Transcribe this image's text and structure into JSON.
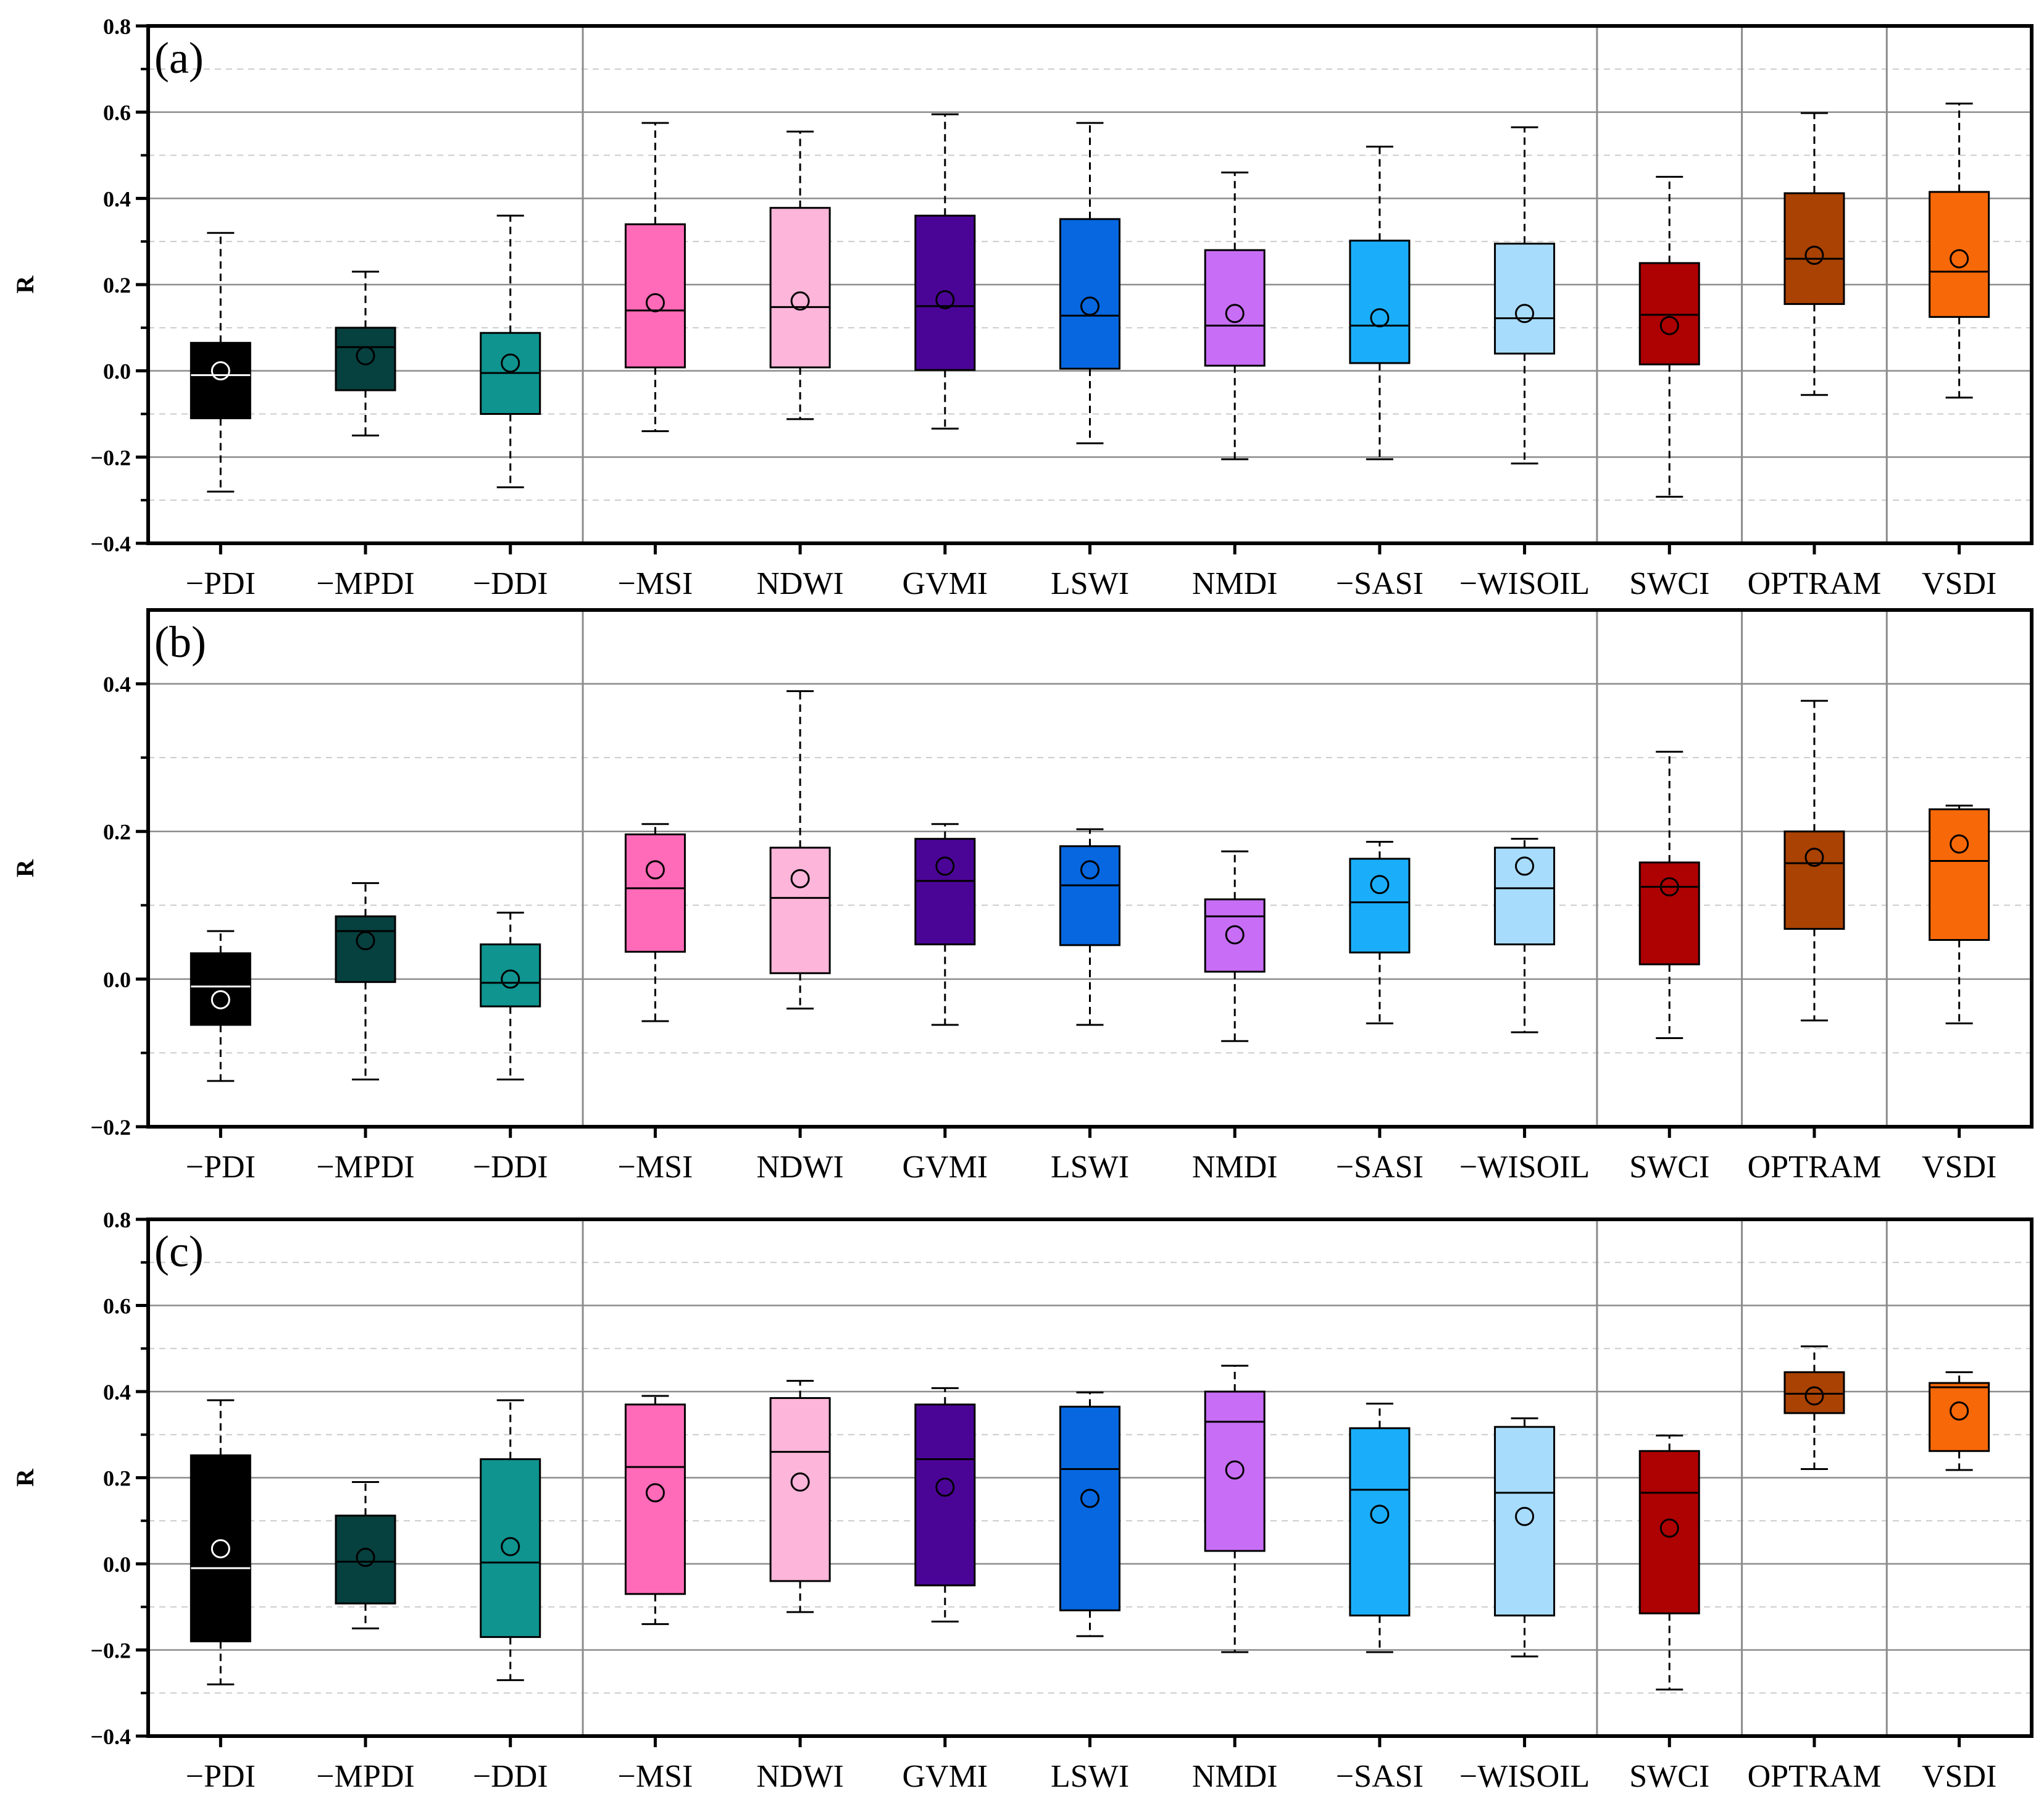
{
  "colors": {
    "-PDI": "#000000",
    "-MPDI": "#06403f",
    "-DDI": "#0f9490",
    "-MSI": "#ff6bb8",
    "NDWI": "#fdb5d9",
    "GVMI": "#4b0596",
    "LSWI": "#0667e0",
    "NMDI": "#c86ef6",
    "-SASI": "#1aaefa",
    "-WISOIL": "#a8dcfc",
    "SWCI": "#ae0101",
    "OPTRAM": "#a94202",
    "VSDI": "#f76808"
  },
  "chart_data": [
    {
      "type": "box",
      "panel_label": "(a)",
      "ylabel": "R",
      "ylim": [
        -0.4,
        0.8
      ],
      "yticks": [
        -0.4,
        -0.2,
        0.0,
        0.2,
        0.4,
        0.6,
        0.8
      ],
      "ytick_labels": [
        "−0.4",
        "−0.2",
        "0.0",
        "0.2",
        "0.4",
        "0.6",
        "0.8"
      ],
      "grid": true,
      "group_separators_after": [
        3,
        10,
        11,
        12
      ],
      "categories": [
        "−PDI",
        "−MPDI",
        "−DDI",
        "−MSI",
        "NDWI",
        "GVMI",
        "LSWI",
        "NMDI",
        "−SASI",
        "−WISOIL",
        "SWCI",
        "OPTRAM",
        "VSDI"
      ],
      "boxes": [
        {
          "min": -0.28,
          "q1": -0.11,
          "median": -0.01,
          "q3": 0.065,
          "max": 0.32,
          "mean": 0.0
        },
        {
          "min": -0.15,
          "q1": -0.045,
          "median": 0.055,
          "q3": 0.1,
          "max": 0.23,
          "mean": 0.035
        },
        {
          "min": -0.27,
          "q1": -0.1,
          "median": -0.005,
          "q3": 0.088,
          "max": 0.36,
          "mean": 0.018
        },
        {
          "min": -0.14,
          "q1": 0.008,
          "median": 0.14,
          "q3": 0.34,
          "max": 0.575,
          "mean": 0.158
        },
        {
          "min": -0.112,
          "q1": 0.008,
          "median": 0.148,
          "q3": 0.378,
          "max": 0.555,
          "mean": 0.162
        },
        {
          "min": -0.134,
          "q1": 0.002,
          "median": 0.15,
          "q3": 0.36,
          "max": 0.595,
          "mean": 0.165
        },
        {
          "min": -0.168,
          "q1": 0.005,
          "median": 0.128,
          "q3": 0.352,
          "max": 0.575,
          "mean": 0.15
        },
        {
          "min": -0.205,
          "q1": 0.012,
          "median": 0.105,
          "q3": 0.28,
          "max": 0.46,
          "mean": 0.133
        },
        {
          "min": -0.205,
          "q1": 0.018,
          "median": 0.105,
          "q3": 0.302,
          "max": 0.52,
          "mean": 0.123
        },
        {
          "min": -0.215,
          "q1": 0.04,
          "median": 0.122,
          "q3": 0.295,
          "max": 0.565,
          "mean": 0.133
        },
        {
          "min": -0.292,
          "q1": 0.015,
          "median": 0.13,
          "q3": 0.25,
          "max": 0.45,
          "mean": 0.105
        },
        {
          "min": -0.056,
          "q1": 0.155,
          "median": 0.26,
          "q3": 0.412,
          "max": 0.598,
          "mean": 0.268
        },
        {
          "min": -0.062,
          "q1": 0.125,
          "median": 0.23,
          "q3": 0.415,
          "max": 0.62,
          "mean": 0.26
        }
      ]
    },
    {
      "type": "box",
      "panel_label": "(b)",
      "ylabel": "R",
      "ylim": [
        -0.2,
        0.5
      ],
      "yticks": [
        -0.2,
        0.0,
        0.2,
        0.4
      ],
      "ytick_labels": [
        "−0.2",
        "0.0",
        "0.2",
        "0.4"
      ],
      "grid": true,
      "group_separators_after": [
        3,
        10,
        11,
        12
      ],
      "categories": [
        "−PDI",
        "−MPDI",
        "−DDI",
        "−MSI",
        "NDWI",
        "GVMI",
        "LSWI",
        "NMDI",
        "−SASI",
        "−WISOIL",
        "SWCI",
        "OPTRAM",
        "VSDI"
      ],
      "boxes": [
        {
          "min": -0.138,
          "q1": -0.062,
          "median": -0.01,
          "q3": 0.035,
          "max": 0.065,
          "mean": -0.028
        },
        {
          "min": -0.136,
          "q1": -0.004,
          "median": 0.065,
          "q3": 0.085,
          "max": 0.13,
          "mean": 0.052
        },
        {
          "min": -0.136,
          "q1": -0.037,
          "median": -0.005,
          "q3": 0.047,
          "max": 0.09,
          "mean": 0.0
        },
        {
          "min": -0.057,
          "q1": 0.037,
          "median": 0.123,
          "q3": 0.196,
          "max": 0.21,
          "mean": 0.148
        },
        {
          "min": -0.04,
          "q1": 0.008,
          "median": 0.11,
          "q3": 0.178,
          "max": 0.39,
          "mean": 0.136
        },
        {
          "min": -0.062,
          "q1": 0.047,
          "median": 0.133,
          "q3": 0.19,
          "max": 0.21,
          "mean": 0.153
        },
        {
          "min": -0.062,
          "q1": 0.046,
          "median": 0.127,
          "q3": 0.18,
          "max": 0.203,
          "mean": 0.148
        },
        {
          "min": -0.084,
          "q1": 0.01,
          "median": 0.085,
          "q3": 0.108,
          "max": 0.173,
          "mean": 0.06
        },
        {
          "min": -0.06,
          "q1": 0.036,
          "median": 0.104,
          "q3": 0.163,
          "max": 0.186,
          "mean": 0.128
        },
        {
          "min": -0.072,
          "q1": 0.047,
          "median": 0.123,
          "q3": 0.178,
          "max": 0.19,
          "mean": 0.153
        },
        {
          "min": -0.08,
          "q1": 0.02,
          "median": 0.125,
          "q3": 0.158,
          "max": 0.308,
          "mean": 0.125
        },
        {
          "min": -0.056,
          "q1": 0.068,
          "median": 0.157,
          "q3": 0.2,
          "max": 0.377,
          "mean": 0.165
        },
        {
          "min": -0.06,
          "q1": 0.053,
          "median": 0.16,
          "q3": 0.23,
          "max": 0.235,
          "mean": 0.183
        }
      ]
    },
    {
      "type": "box",
      "panel_label": "(c)",
      "ylabel": "R",
      "ylim": [
        -0.4,
        0.8
      ],
      "yticks": [
        -0.4,
        -0.2,
        0.0,
        0.2,
        0.4,
        0.6,
        0.8
      ],
      "ytick_labels": [
        "−0.4",
        "−0.2",
        "0.0",
        "0.2",
        "0.4",
        "0.6",
        "0.8"
      ],
      "grid": true,
      "group_separators_after": [
        3,
        10,
        11,
        12
      ],
      "categories": [
        "−PDI",
        "−MPDI",
        "−DDI",
        "−MSI",
        "NDWI",
        "GVMI",
        "LSWI",
        "NMDI",
        "−SASI",
        "−WISOIL",
        "SWCI",
        "OPTRAM",
        "VSDI"
      ],
      "boxes": [
        {
          "min": -0.28,
          "q1": -0.18,
          "median": -0.01,
          "q3": 0.252,
          "max": 0.38,
          "mean": 0.035
        },
        {
          "min": -0.15,
          "q1": -0.092,
          "median": 0.005,
          "q3": 0.112,
          "max": 0.19,
          "mean": 0.015
        },
        {
          "min": -0.27,
          "q1": -0.17,
          "median": 0.003,
          "q3": 0.243,
          "max": 0.38,
          "mean": 0.04
        },
        {
          "min": -0.14,
          "q1": -0.07,
          "median": 0.225,
          "q3": 0.37,
          "max": 0.39,
          "mean": 0.165
        },
        {
          "min": -0.112,
          "q1": -0.04,
          "median": 0.26,
          "q3": 0.385,
          "max": 0.425,
          "mean": 0.19
        },
        {
          "min": -0.134,
          "q1": -0.05,
          "median": 0.243,
          "q3": 0.37,
          "max": 0.408,
          "mean": 0.178
        },
        {
          "min": -0.168,
          "q1": -0.108,
          "median": 0.22,
          "q3": 0.365,
          "max": 0.398,
          "mean": 0.152
        },
        {
          "min": -0.205,
          "q1": 0.03,
          "median": 0.33,
          "q3": 0.4,
          "max": 0.46,
          "mean": 0.218
        },
        {
          "min": -0.205,
          "q1": -0.12,
          "median": 0.172,
          "q3": 0.315,
          "max": 0.372,
          "mean": 0.115
        },
        {
          "min": -0.215,
          "q1": -0.12,
          "median": 0.165,
          "q3": 0.318,
          "max": 0.338,
          "mean": 0.11
        },
        {
          "min": -0.292,
          "q1": -0.115,
          "median": 0.165,
          "q3": 0.262,
          "max": 0.298,
          "mean": 0.083
        },
        {
          "min": 0.22,
          "q1": 0.35,
          "median": 0.395,
          "q3": 0.445,
          "max": 0.505,
          "mean": 0.39
        },
        {
          "min": 0.218,
          "q1": 0.262,
          "median": 0.41,
          "q3": 0.42,
          "max": 0.445,
          "mean": 0.355
        }
      ]
    }
  ]
}
